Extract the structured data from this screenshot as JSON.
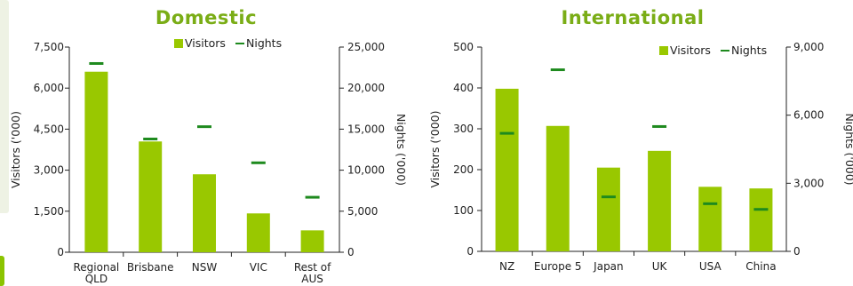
{
  "colors": {
    "bar": "#99c800",
    "nights": "#1e8a1e",
    "title": "#7aad16",
    "axis": "#222222"
  },
  "chart_data": [
    {
      "type": "bar",
      "title": "Domestic",
      "categories": [
        "Regional QLD",
        "Brisbane",
        "NSW",
        "VIC",
        "Rest of AUS"
      ],
      "category_lines": [
        [
          "Regional",
          "QLD"
        ],
        [
          "Brisbane"
        ],
        [
          "NSW"
        ],
        [
          "VIC"
        ],
        [
          "Rest of",
          "AUS"
        ]
      ],
      "series": [
        {
          "name": "Visitors",
          "axis": "left",
          "kind": "bar",
          "values": [
            6600,
            4050,
            2850,
            1420,
            800
          ]
        },
        {
          "name": "Nights",
          "axis": "right",
          "kind": "marker",
          "values": [
            23000,
            13800,
            15300,
            10900,
            6700
          ]
        }
      ],
      "ylabel": "Visitors ('000)",
      "y2label": "Nights ('000)",
      "ylim": [
        0,
        7500
      ],
      "y2lim": [
        0,
        25000
      ],
      "yticks": [
        0,
        1500,
        3000,
        4500,
        6000,
        7500
      ],
      "y2ticks": [
        0,
        5000,
        10000,
        15000,
        20000,
        25000
      ],
      "ytick_labels": [
        "0",
        "1,500",
        "3,000",
        "4,500",
        "6,000",
        "7,500"
      ],
      "y2tick_labels": [
        "0",
        "5,000",
        "10,000",
        "15,000",
        "20,000",
        "25,000"
      ],
      "legend": "top-right",
      "grid": false
    },
    {
      "type": "bar",
      "title": "International",
      "categories": [
        "NZ",
        "Europe 5",
        "Japan",
        "UK",
        "USA",
        "China"
      ],
      "category_lines": [
        [
          "NZ"
        ],
        [
          "Europe 5"
        ],
        [
          "Japan"
        ],
        [
          "UK"
        ],
        [
          "USA"
        ],
        [
          "China"
        ]
      ],
      "series": [
        {
          "name": "Visitors",
          "axis": "left",
          "kind": "bar",
          "values": [
            398,
            307,
            205,
            246,
            158,
            154
          ]
        },
        {
          "name": "Nights",
          "axis": "right",
          "kind": "marker",
          "values": [
            5200,
            8000,
            2400,
            5500,
            2100,
            1850
          ]
        }
      ],
      "ylabel": "Visitors ('000)",
      "y2label": "Nights ('000)",
      "ylim": [
        0,
        500
      ],
      "y2lim": [
        0,
        9000
      ],
      "yticks": [
        0,
        100,
        200,
        300,
        400,
        500
      ],
      "y2ticks": [
        0,
        3000,
        6000,
        9000
      ],
      "ytick_labels": [
        "0",
        "100",
        "200",
        "300",
        "400",
        "500"
      ],
      "y2tick_labels": [
        "0",
        "3,000",
        "6,000",
        "9,000"
      ],
      "legend": "top-right",
      "grid": false
    }
  ]
}
